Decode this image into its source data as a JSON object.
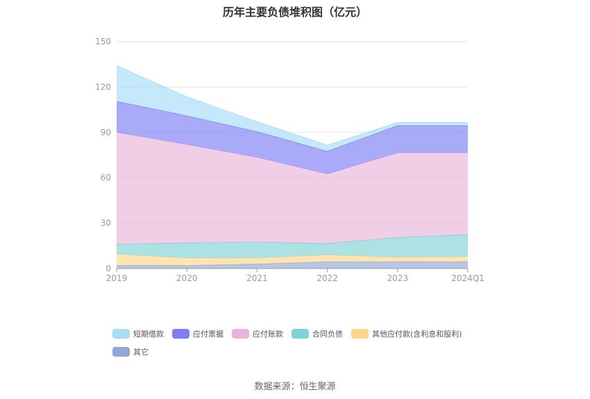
{
  "chart_data": {
    "type": "area",
    "title": "历年主要负债堆积图（亿元）",
    "categories": [
      "2019",
      "2020",
      "2021",
      "2022",
      "2023",
      "2024Q1"
    ],
    "ylim": [
      0,
      150
    ],
    "yticks": [
      "0",
      "30",
      "60",
      "90",
      "120",
      "150"
    ],
    "stacked": true,
    "grid": true,
    "legend_position": "bottom",
    "series": [
      {
        "name": "其它",
        "color": "#8fa8d8",
        "values": [
          2.0,
          2.0,
          3.0,
          4.5,
          4.5,
          4.5
        ]
      },
      {
        "name": "其他应付款(含利息和股利)",
        "color": "#ffd58a",
        "values": [
          7.5,
          5.0,
          4.0,
          4.5,
          3.0,
          3.5
        ]
      },
      {
        "name": "合同负债",
        "color": "#7fd3d6",
        "values": [
          6.5,
          10.0,
          10.5,
          7.5,
          13.0,
          14.5
        ]
      },
      {
        "name": "应付账款",
        "color": "#e8b4d8",
        "values": [
          74.0,
          65.0,
          56.0,
          46.0,
          56.0,
          54.0
        ]
      },
      {
        "name": "应付票据",
        "color": "#7b7ef5",
        "values": [
          20.5,
          19.0,
          17.0,
          15.0,
          18.0,
          18.0
        ]
      },
      {
        "name": "短期借款",
        "color": "#a6ddf7",
        "values": [
          23.5,
          12.5,
          6.5,
          4.0,
          2.0,
          2.0
        ]
      }
    ],
    "legend_order": [
      "短期借款",
      "应付票据",
      "应付账款",
      "合同负债",
      "其他应付款(含利息和股利)",
      "其它"
    ]
  },
  "source": "数据来源：恒生聚源"
}
